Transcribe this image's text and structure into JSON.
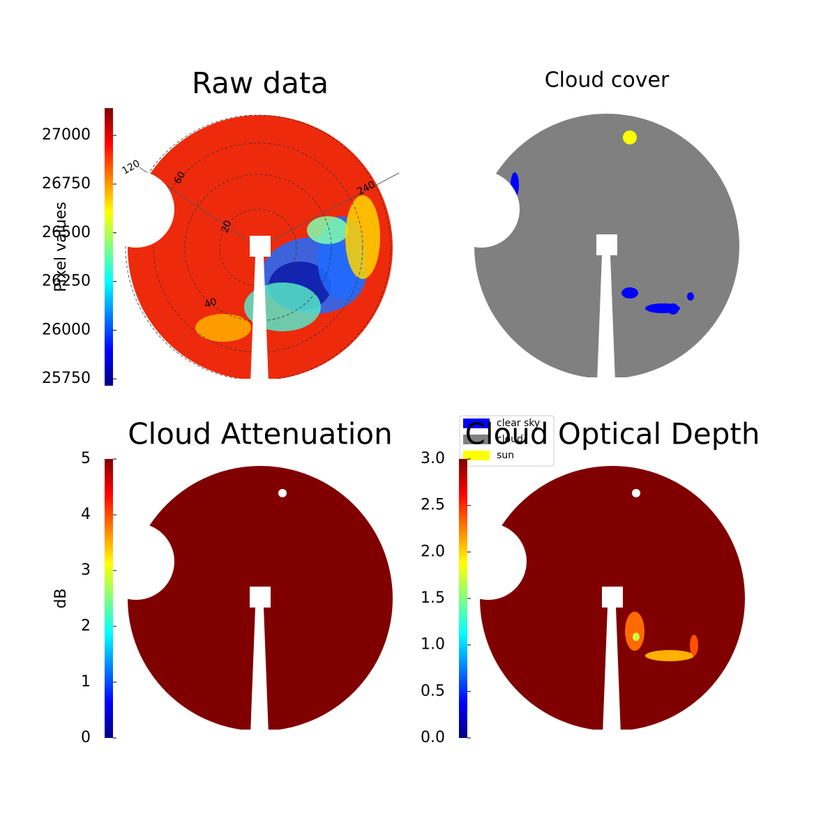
{
  "chart_data": [
    {
      "type": "image",
      "title": "Raw data",
      "colorbar_label": "Pixel values",
      "colormap": "jet",
      "clim": [
        25715,
        27140
      ],
      "cticks": [
        25750,
        26000,
        26250,
        26500,
        26750,
        27000
      ],
      "polar_ticks": [
        "120",
        "240",
        "20",
        "40",
        "60"
      ]
    },
    {
      "type": "image",
      "title": "Cloud cover",
      "legend": [
        {
          "name": "clear sky",
          "color": "#0000ff"
        },
        {
          "name": "cloud",
          "color": "#808080"
        },
        {
          "name": "sun",
          "color": "#ffff00"
        }
      ]
    },
    {
      "type": "image",
      "title": "Cloud Attenuation",
      "colorbar_label": "dB",
      "colormap": "jet",
      "clim": [
        0,
        5
      ],
      "cticks": [
        0,
        1,
        2,
        3,
        4,
        5
      ]
    },
    {
      "type": "image",
      "title": "Cloud Optical Depth",
      "colormap": "jet",
      "clim": [
        0,
        3
      ],
      "cticks": [
        {
          "value": 0,
          "label": "0.0"
        },
        0.5,
        {
          "value": 1,
          "label": "1.0"
        },
        1.5,
        {
          "value": 2,
          "label": "2.0"
        },
        2.5,
        {
          "value": 3,
          "label": "3.0"
        }
      ]
    }
  ]
}
